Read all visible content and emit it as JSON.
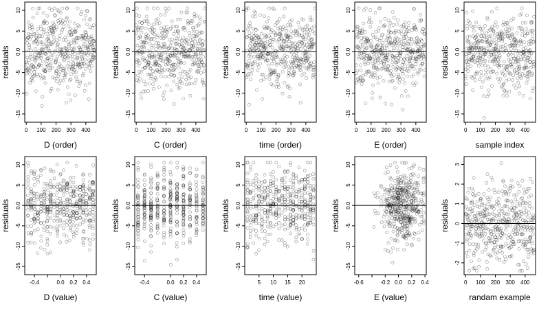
{
  "figure": {
    "ylabel": "residuals"
  },
  "chart_data": [
    {
      "type": "scatter",
      "xlabel": "D (order)",
      "ylabel": "residuals",
      "xlim": [
        -10,
        470
      ],
      "ylim": [
        -17,
        12
      ],
      "xticks": [
        0,
        100,
        200,
        300,
        400
      ],
      "xtick_labels": [
        "0",
        "100",
        "200",
        "300",
        "400"
      ],
      "yticks": [
        -15,
        -10,
        -5,
        0,
        5,
        10
      ],
      "ytick_labels": [
        "-15",
        "-10",
        "-5",
        "0.0",
        "5",
        "10"
      ],
      "hline": 0,
      "points": {
        "n": 450,
        "kind": "order",
        "seed": 11,
        "min": 0,
        "max": 460,
        "y_sd": 4.6,
        "y_min": -16,
        "y_max": 10.5
      }
    },
    {
      "type": "scatter",
      "xlabel": "C (order)",
      "ylabel": "residuals",
      "xlim": [
        -10,
        470
      ],
      "ylim": [
        -17,
        12
      ],
      "xticks": [
        0,
        100,
        200,
        300,
        400
      ],
      "xtick_labels": [
        "0",
        "100",
        "200",
        "300",
        "400"
      ],
      "yticks": [
        -15,
        -10,
        -5,
        0,
        5,
        10
      ],
      "ytick_labels": [
        "-15",
        "-10",
        "-5",
        "0.0",
        "5",
        "10"
      ],
      "hline": 0,
      "points": {
        "n": 450,
        "kind": "order",
        "seed": 12,
        "min": 0,
        "max": 460,
        "y_sd": 4.6,
        "y_min": -16,
        "y_max": 10.5
      }
    },
    {
      "type": "scatter",
      "xlabel": "time (order)",
      "ylabel": "residuals",
      "xlim": [
        -10,
        470
      ],
      "ylim": [
        -17,
        12
      ],
      "xticks": [
        0,
        100,
        200,
        300,
        400
      ],
      "xtick_labels": [
        "0",
        "100",
        "200",
        "300",
        "400"
      ],
      "yticks": [
        -15,
        -10,
        -5,
        0,
        5,
        10
      ],
      "ytick_labels": [
        "-15",
        "-10",
        "-5",
        "0.0",
        "5",
        "10"
      ],
      "hline": 0,
      "points": {
        "n": 450,
        "kind": "order",
        "seed": 13,
        "min": 0,
        "max": 460,
        "y_sd": 4.6,
        "y_min": -16,
        "y_max": 10.5
      }
    },
    {
      "type": "scatter",
      "xlabel": "E (order)",
      "ylabel": "residuals",
      "xlim": [
        -10,
        470
      ],
      "ylim": [
        -17,
        12
      ],
      "xticks": [
        0,
        100,
        200,
        300,
        400
      ],
      "xtick_labels": [
        "0",
        "100",
        "200",
        "300",
        "400"
      ],
      "yticks": [
        -15,
        -10,
        -5,
        0,
        5,
        10
      ],
      "ytick_labels": [
        "-15",
        "-10",
        "-5",
        "0.0",
        "5",
        "10"
      ],
      "hline": 0,
      "points": {
        "n": 450,
        "kind": "order",
        "seed": 14,
        "min": 0,
        "max": 460,
        "y_sd": 4.6,
        "y_min": -16,
        "y_max": 10.5
      }
    },
    {
      "type": "scatter",
      "xlabel": "sample index",
      "ylabel": "residuals",
      "xlim": [
        -10,
        470
      ],
      "ylim": [
        -17,
        12
      ],
      "xticks": [
        0,
        100,
        200,
        300,
        400
      ],
      "xtick_labels": [
        "0",
        "100",
        "200",
        "300",
        "400"
      ],
      "yticks": [
        -15,
        -10,
        -5,
        0,
        5,
        10
      ],
      "ytick_labels": [
        "-15",
        "-10",
        "-5",
        "0.0",
        "5",
        "10"
      ],
      "hline": 0,
      "points": {
        "n": 450,
        "kind": "order",
        "seed": 15,
        "min": 0,
        "max": 460,
        "y_sd": 4.6,
        "y_min": -16,
        "y_max": 10.5
      }
    },
    {
      "type": "scatter",
      "xlabel": "D (value)",
      "ylabel": "residuals",
      "xlim": [
        -0.55,
        0.55
      ],
      "ylim": [
        -17,
        12
      ],
      "xticks": [
        -0.4,
        -0.2,
        0.0,
        0.2,
        0.4
      ],
      "xtick_labels": [
        "-0.4",
        "",
        "0.0",
        "0.2",
        "0.4"
      ],
      "yticks": [
        -15,
        -10,
        -5,
        0,
        5,
        10
      ],
      "ytick_labels": [
        "-15",
        "-10",
        "-5",
        "0.0",
        "5",
        "10"
      ],
      "hline": 0,
      "points": {
        "n": 450,
        "kind": "grid",
        "seed": 16,
        "min": -0.5,
        "max": 0.5,
        "step": 0.05,
        "jitter": 0.006,
        "y_sd": 4.6,
        "y_min": -16,
        "y_max": 10.5
      }
    },
    {
      "type": "scatter",
      "xlabel": "C (value)",
      "ylabel": "residuals",
      "xlim": [
        -0.55,
        0.55
      ],
      "ylim": [
        -17,
        12
      ],
      "xticks": [
        -0.4,
        0.0,
        0.2,
        0.4
      ],
      "xtick_labels": [
        "-0.4",
        "0.0",
        "0.2",
        "0.4"
      ],
      "yticks": [
        -15,
        -10,
        -5,
        0,
        5,
        10
      ],
      "ytick_labels": [
        "-15",
        "-10",
        "-5",
        "0.0",
        "5",
        "10"
      ],
      "hline": 0,
      "points": {
        "n": 450,
        "kind": "grid",
        "seed": 17,
        "min": -0.5,
        "max": 0.5,
        "step": 0.1,
        "jitter": 0.004,
        "y_sd": 4.6,
        "y_min": -16,
        "y_max": 10.5
      }
    },
    {
      "type": "scatter",
      "xlabel": "time (value)",
      "ylabel": "residuals",
      "xlim": [
        0,
        25
      ],
      "ylim": [
        -17,
        12
      ],
      "xticks": [
        5,
        10,
        15,
        20
      ],
      "xtick_labels": [
        "5",
        "10",
        "15",
        "20"
      ],
      "yticks": [
        -15,
        -10,
        -5,
        0,
        5,
        10
      ],
      "ytick_labels": [
        "-15",
        "-10",
        "-5",
        "0.0",
        "5",
        "10"
      ],
      "hline": 0,
      "points": {
        "n": 450,
        "kind": "grid",
        "seed": 18,
        "min": 1,
        "max": 24,
        "step": 1,
        "jitter": 0.05,
        "y_sd": 4.6,
        "y_min": -16,
        "y_max": 10.5
      }
    },
    {
      "type": "scatter",
      "xlabel": "E (value)",
      "ylabel": "residuals",
      "xlim": [
        -0.66,
        0.42
      ],
      "ylim": [
        -17,
        12
      ],
      "xticks": [
        -0.6,
        -0.4,
        -0.2,
        0.0,
        0.2,
        0.4
      ],
      "xtick_labels": [
        "-0.6",
        "",
        "-0.2",
        "0.0",
        "0.2",
        "0.4"
      ],
      "yticks": [
        -15,
        -10,
        -5,
        0,
        5,
        10
      ],
      "ytick_labels": [
        "-15",
        "-10",
        "-5",
        "0.0",
        "5",
        "10"
      ],
      "hline": 0,
      "points": {
        "n": 450,
        "kind": "cluster",
        "seed": 19,
        "center": 0.05,
        "sd": 0.17,
        "min": -0.62,
        "max": 0.38,
        "y_sd": 4.6,
        "y_min": -16,
        "y_max": 10.5
      }
    },
    {
      "type": "scatter",
      "xlabel": "randam example",
      "ylabel": "residuals",
      "xlim": [
        -10,
        470
      ],
      "ylim": [
        -2.6,
        3.4
      ],
      "xticks": [
        0,
        100,
        200,
        300,
        400
      ],
      "xtick_labels": [
        "0",
        "100",
        "200",
        "300",
        "400"
      ],
      "yticks": [
        -2,
        -1,
        0,
        1,
        2,
        3
      ],
      "ytick_labels": [
        "-2",
        "-1",
        "0",
        "1",
        "2",
        "3"
      ],
      "hline": 0,
      "points": {
        "n": 450,
        "kind": "order",
        "seed": 20,
        "min": 0,
        "max": 460,
        "y_sd": 1.0,
        "y_min": -2.4,
        "y_max": 3.2
      }
    }
  ]
}
